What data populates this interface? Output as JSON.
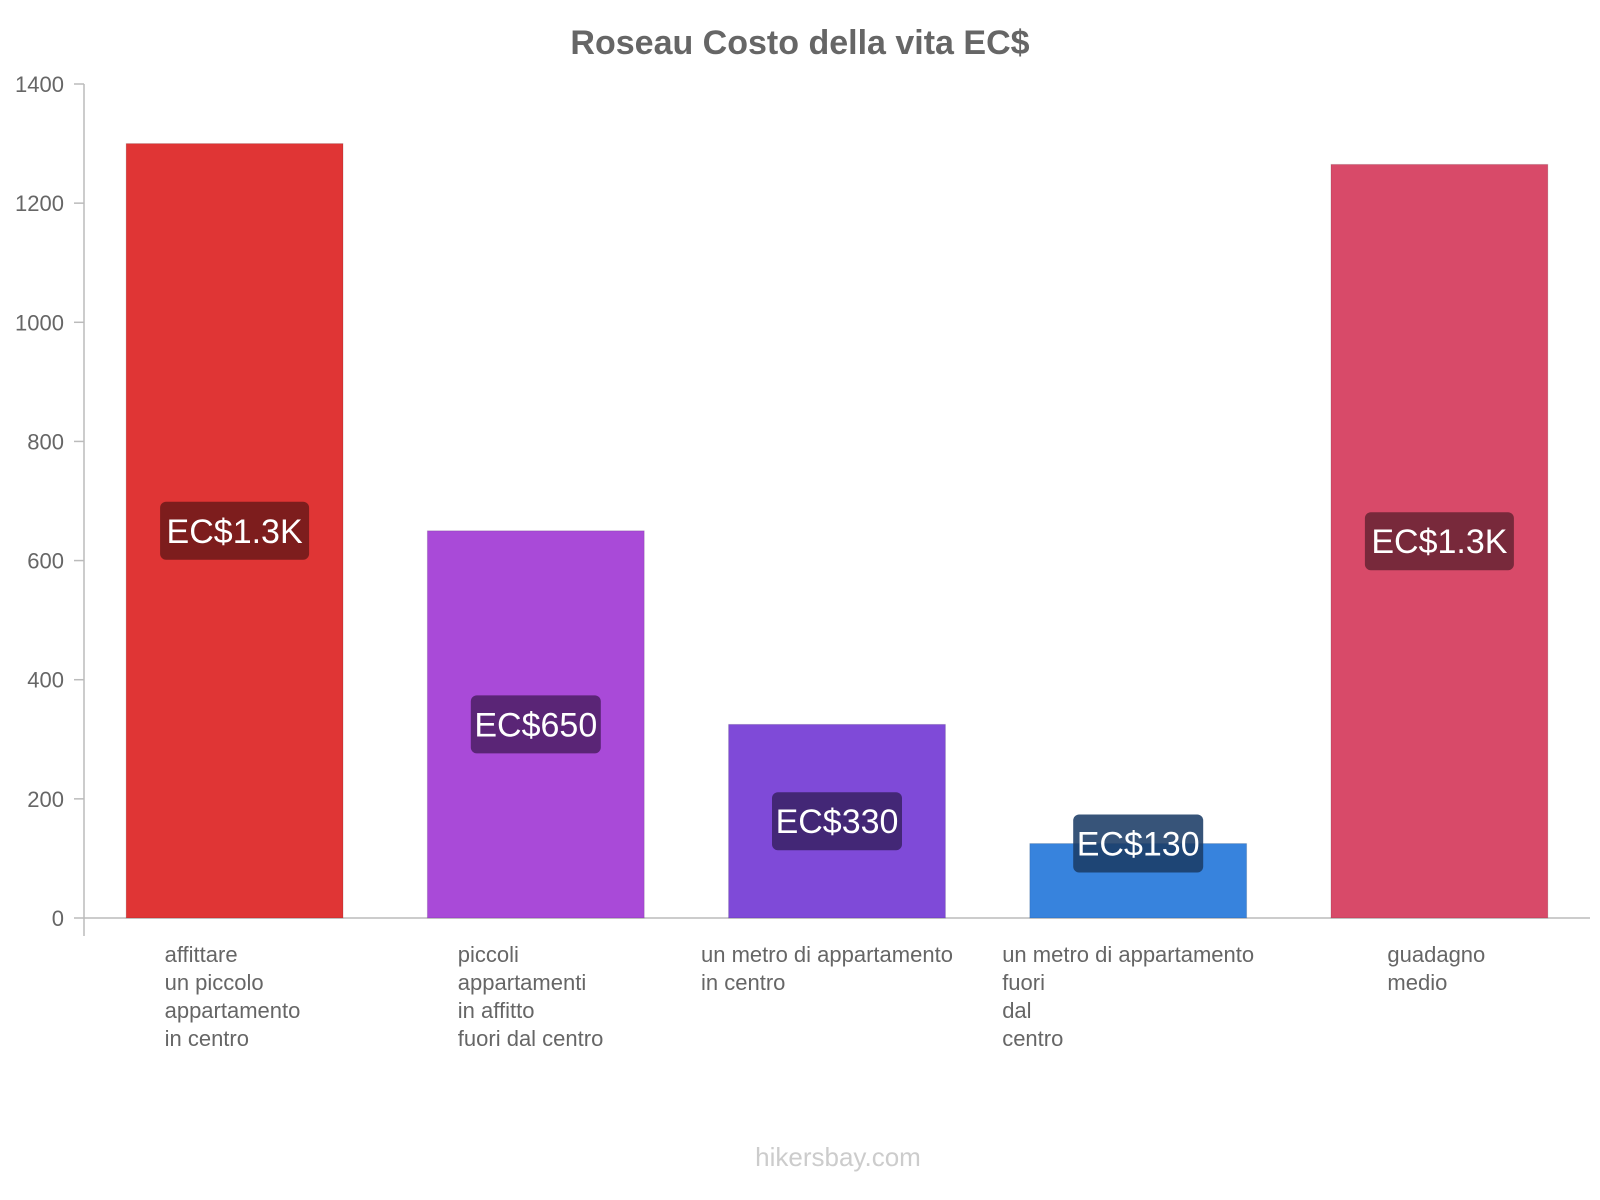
{
  "chart_data": {
    "type": "bar",
    "title": "Roseau Costo della vita EC$",
    "xlabel": "",
    "ylabel": "",
    "ylim": [
      0,
      1400
    ],
    "yticks": [
      0,
      200,
      400,
      600,
      800,
      1000,
      1200,
      1400
    ],
    "grid": false,
    "legend": "none",
    "categories": [
      [
        "affittare",
        "un piccolo",
        "appartamento",
        "in centro"
      ],
      [
        "piccoli",
        "appartamenti",
        "in affitto",
        "fuori dal centro"
      ],
      [
        "un metro di appartamento",
        "in centro"
      ],
      [
        "un metro di appartamento",
        "fuori",
        "dal",
        "centro"
      ],
      [
        "guadagno",
        "medio"
      ]
    ],
    "values": [
      1300,
      650,
      325,
      125,
      1265
    ],
    "data_labels": [
      "EC$1.3K",
      "EC$650",
      "EC$330",
      "EC$130",
      "EC$1.3K"
    ],
    "colors": [
      "#e03535",
      "#a94ad8",
      "#7f4ad8",
      "#3783dd",
      "#d84a69"
    ],
    "label_box_colors": [
      "#6e1a1a",
      "#4f2068",
      "#3b2268",
      "#1b3c66",
      "#6a2434"
    ]
  },
  "watermark": "hikersbay.com"
}
